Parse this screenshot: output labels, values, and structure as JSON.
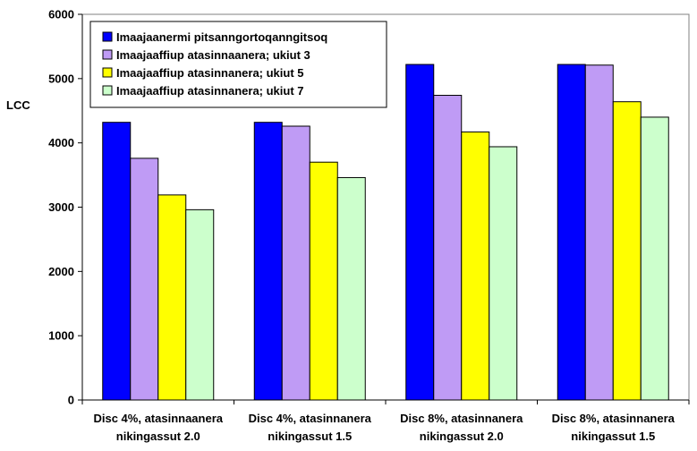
{
  "chart_data": {
    "type": "bar",
    "title": "",
    "xlabel": "",
    "ylabel": "LCC",
    "ylim": [
      0,
      6000
    ],
    "yticks": [
      0,
      1000,
      2000,
      3000,
      4000,
      5000,
      6000
    ],
    "grid": false,
    "legend_position": "top-left",
    "categories": [
      [
        "Disc 4%, atasinnaanera",
        "nikingassut 2.0"
      ],
      [
        "Disc 4%, atasinnanera",
        "nikingassut 1.5"
      ],
      [
        "Disc 8%,  atasinnanera",
        "nikingassut 2.0"
      ],
      [
        "Disc 8%, atasinnanera",
        "nikingassut 1.5"
      ]
    ],
    "series": [
      {
        "name": "Imaajaanermi pitsanngortoqanngitsoq",
        "color": "#0000ff",
        "values": [
          4320,
          4320,
          5220,
          5220
        ]
      },
      {
        "name": "Imaajaaffiup atasinnaanera; ukiut 3",
        "color": "#bf9bf5",
        "values": [
          3760,
          4260,
          4740,
          5210
        ]
      },
      {
        "name": "Imaajaaffiup atasinnanera; ukiut 5",
        "color": "#ffff00",
        "values": [
          3190,
          3700,
          4170,
          4640
        ]
      },
      {
        "name": "Imaajaaffiup atasinnanera; ukiut 7",
        "color": "#ccffcc",
        "values": [
          2960,
          3460,
          3940,
          4400
        ]
      }
    ]
  }
}
